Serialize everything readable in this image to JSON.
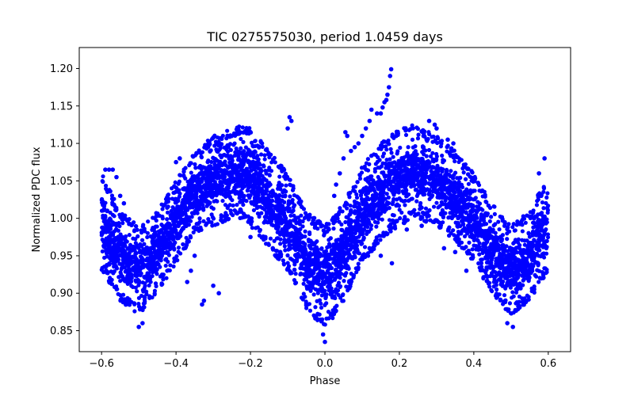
{
  "chart_data": {
    "type": "scatter",
    "title": "TIC 0275575030, period 1.0459 days",
    "xlabel": "Phase",
    "ylabel": "Normalized PDC flux",
    "xlim": [
      -0.66,
      0.66
    ],
    "ylim": [
      0.822,
      1.228
    ],
    "xticks": [
      -0.6,
      -0.4,
      -0.2,
      0.0,
      0.2,
      0.4,
      0.6
    ],
    "xtick_labels": [
      "−0.6",
      "−0.4",
      "−0.2",
      "0.0",
      "0.2",
      "0.4",
      "0.6"
    ],
    "yticks": [
      0.85,
      0.9,
      0.95,
      1.0,
      1.05,
      1.1,
      1.15,
      1.2
    ],
    "ytick_labels": [
      "0.85",
      "0.90",
      "0.95",
      "1.00",
      "1.05",
      "1.10",
      "1.15",
      "1.20"
    ],
    "grid": false,
    "legend": "none",
    "marker_color": "#0000ff",
    "marker": "circle",
    "series": [
      {
        "envelope_description_free": true,
        "phase": [
          -0.6,
          -0.55,
          -0.5,
          -0.45,
          -0.4,
          -0.35,
          -0.3,
          -0.25,
          -0.22,
          -0.2,
          -0.15,
          -0.1,
          -0.05,
          0.0,
          0.05,
          0.1,
          0.15,
          0.2,
          0.24,
          0.3,
          0.35,
          0.4,
          0.45,
          0.5,
          0.55,
          0.6
        ],
        "flux_upper": [
          1.06,
          1.01,
          0.99,
          1.01,
          1.05,
          1.09,
          1.11,
          1.12,
          1.125,
          1.12,
          1.09,
          1.06,
          1.01,
          0.99,
          1.02,
          1.07,
          1.1,
          1.12,
          1.125,
          1.11,
          1.09,
          1.06,
          1.02,
          0.99,
          1.01,
          1.06
        ],
        "flux_lower": [
          0.93,
          0.89,
          0.87,
          0.9,
          0.94,
          0.98,
          0.99,
          1.0,
          1.0,
          0.99,
          0.96,
          0.93,
          0.88,
          0.85,
          0.89,
          0.94,
          0.97,
          0.99,
          1.0,
          0.99,
          0.97,
          0.94,
          0.9,
          0.87,
          0.89,
          0.93
        ]
      }
    ],
    "outliers": [
      {
        "x": 0.178,
        "y": 1.199
      },
      {
        "x": 0.175,
        "y": 1.19
      },
      {
        "x": 0.172,
        "y": 1.175
      },
      {
        "x": 0.168,
        "y": 1.165
      },
      {
        "x": 0.165,
        "y": 1.158
      },
      {
        "x": 0.16,
        "y": 1.155
      },
      {
        "x": 0.155,
        "y": 1.148
      },
      {
        "x": 0.15,
        "y": 1.14
      },
      {
        "x": 0.14,
        "y": 1.14
      },
      {
        "x": 0.125,
        "y": 1.145
      },
      {
        "x": 0.12,
        "y": 1.13
      },
      {
        "x": 0.11,
        "y": 1.12
      },
      {
        "x": 0.1,
        "y": 1.11
      },
      {
        "x": 0.09,
        "y": 1.1
      },
      {
        "x": 0.08,
        "y": 1.095
      },
      {
        "x": 0.07,
        "y": 1.09
      },
      {
        "x": 0.06,
        "y": 1.11
      },
      {
        "x": 0.055,
        "y": 1.115
      },
      {
        "x": 0.05,
        "y": 1.08
      },
      {
        "x": 0.04,
        "y": 1.06
      },
      {
        "x": 0.03,
        "y": 1.045
      },
      {
        "x": 0.025,
        "y": 1.03
      },
      {
        "x": -0.09,
        "y": 1.13
      },
      {
        "x": -0.095,
        "y": 1.135
      },
      {
        "x": -0.1,
        "y": 1.12
      },
      {
        "x": 0.28,
        "y": 1.13
      },
      {
        "x": 0.295,
        "y": 1.125
      },
      {
        "x": 0.3,
        "y": 1.12
      },
      {
        "x": 0.33,
        "y": 1.105
      },
      {
        "x": 0.345,
        "y": 1.1
      },
      {
        "x": -0.39,
        "y": 1.08
      },
      {
        "x": -0.4,
        "y": 1.075
      },
      {
        "x": -0.285,
        "y": 0.9
      },
      {
        "x": -0.3,
        "y": 0.91
      },
      {
        "x": -0.325,
        "y": 0.89
      },
      {
        "x": -0.33,
        "y": 0.885
      },
      {
        "x": -0.35,
        "y": 0.95
      },
      {
        "x": -0.36,
        "y": 0.93
      },
      {
        "x": -0.37,
        "y": 0.915
      },
      {
        "x": -0.59,
        "y": 1.065
      },
      {
        "x": -0.58,
        "y": 1.065
      },
      {
        "x": -0.57,
        "y": 1.065
      },
      {
        "x": -0.56,
        "y": 1.055
      },
      {
        "x": -0.55,
        "y": 1.03
      },
      {
        "x": -0.54,
        "y": 1.02
      },
      {
        "x": 0.59,
        "y": 1.08
      },
      {
        "x": 0.575,
        "y": 1.06
      },
      {
        "x": 0.18,
        "y": 0.94
      },
      {
        "x": 0.15,
        "y": 0.95
      },
      {
        "x": 0.12,
        "y": 0.96
      },
      {
        "x": -0.12,
        "y": 0.955
      },
      {
        "x": -0.14,
        "y": 0.96
      },
      {
        "x": -0.16,
        "y": 0.975
      },
      {
        "x": 0.0,
        "y": 0.835
      },
      {
        "x": -0.005,
        "y": 0.845
      },
      {
        "x": -0.5,
        "y": 0.855
      },
      {
        "x": -0.49,
        "y": 0.86
      },
      {
        "x": 0.505,
        "y": 0.855
      },
      {
        "x": 0.49,
        "y": 0.86
      },
      {
        "x": 0.44,
        "y": 0.95
      },
      {
        "x": 0.42,
        "y": 0.94
      },
      {
        "x": 0.38,
        "y": 0.93
      },
      {
        "x": 0.35,
        "y": 0.955
      },
      {
        "x": 0.32,
        "y": 0.96
      },
      {
        "x": -0.2,
        "y": 0.975
      },
      {
        "x": 0.22,
        "y": 0.985
      },
      {
        "x": 0.26,
        "y": 0.99
      }
    ]
  }
}
